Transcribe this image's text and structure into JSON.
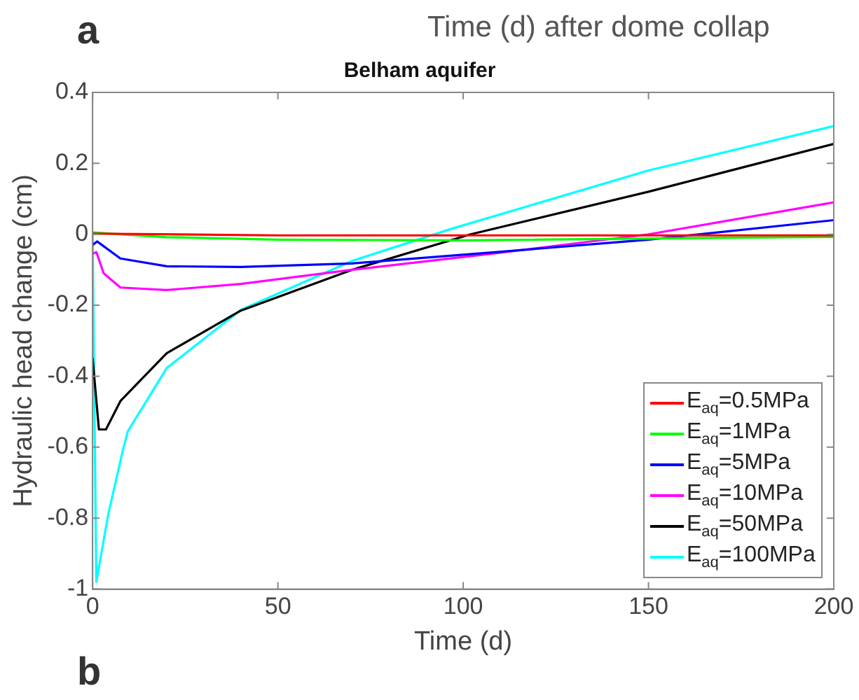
{
  "chart_data": {
    "type": "line",
    "title": "Belham aquifer",
    "xlabel": "Time (d)",
    "ylabel": "Hydraulic head change (cm)",
    "annotations": [
      "a",
      "Time (d) after dome collap",
      "b"
    ],
    "xlim": [
      0,
      200
    ],
    "xticks": [
      0,
      50,
      100,
      150,
      200
    ],
    "ylim": [
      -1,
      0.4
    ],
    "yticks": [
      -1,
      -0.8,
      -0.6,
      -0.4,
      -0.2,
      0,
      0.2,
      0.4
    ],
    "grid": false,
    "legend": "bottom right",
    "marker": "none",
    "line_style": "solid",
    "series": [
      {
        "name": "E$_{aq}$=0.5MPa",
        "color": "#ff0000",
        "x": [
          0,
          50,
          200
        ],
        "values": [
          0.002,
          -0.003,
          -0.003
        ]
      },
      {
        "name": "E$_{aq}$=1MPa",
        "color": "#00ff00",
        "x": [
          0,
          20,
          50,
          100,
          200
        ],
        "values": [
          0.005,
          -0.008,
          -0.015,
          -0.017,
          -0.007
        ]
      },
      {
        "name": "E$_{aq}$=5MPa",
        "color": "#0000ff",
        "x": [
          0,
          1.2,
          7.5,
          20,
          40,
          70,
          109,
          150,
          200
        ],
        "values": [
          -0.03,
          -0.02,
          -0.068,
          -0.09,
          -0.092,
          -0.082,
          -0.05,
          -0.015,
          0.04
        ]
      },
      {
        "name": "E$_{aq}$=10MPa",
        "color": "#ff00ff",
        "x": [
          0,
          1,
          3,
          7.5,
          20,
          40,
          70,
          109,
          150,
          200
        ],
        "values": [
          -0.055,
          -0.05,
          -0.11,
          -0.15,
          -0.157,
          -0.14,
          -0.1,
          -0.053,
          0.0,
          0.09
        ]
      },
      {
        "name": "E$_{aq}$=50MPa",
        "color": "#000000",
        "x": [
          0,
          1.7,
          3.6,
          7.5,
          20,
          40,
          70,
          102,
          150,
          200
        ],
        "values": [
          -0.35,
          -0.55,
          -0.55,
          -0.47,
          -0.335,
          -0.215,
          -0.1,
          0,
          0.12,
          0.255
        ]
      },
      {
        "name": "E$_{aq}$=100MPa",
        "color": "#00ffff",
        "x": [
          0,
          1,
          4.2,
          8.2,
          9.5,
          20,
          40,
          70,
          97,
          150,
          200
        ],
        "values": [
          0,
          -0.98,
          -0.79,
          -0.607,
          -0.555,
          -0.377,
          -0.213,
          -0.075,
          0.016,
          0.18,
          0.305
        ]
      }
    ]
  }
}
